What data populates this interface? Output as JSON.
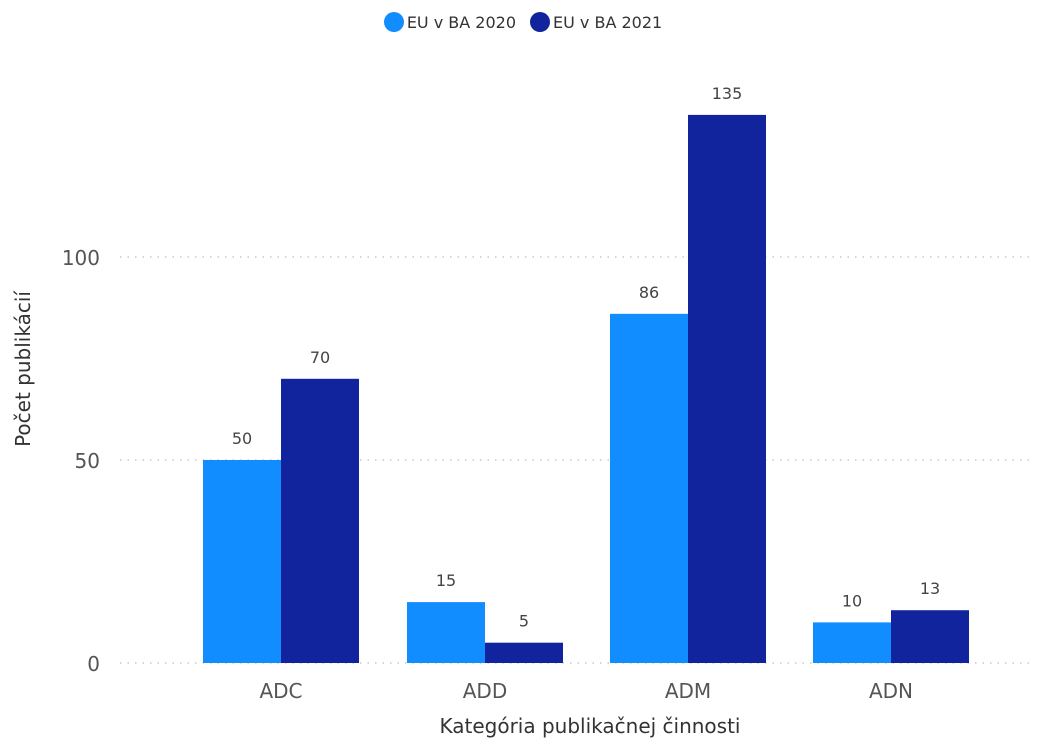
{
  "chart_data": {
    "type": "bar",
    "title": "",
    "xlabel": "Kategória publikačnej činnosti",
    "ylabel": "Počet publikácií",
    "categories": [
      "ADC",
      "ADD",
      "ADM",
      "ADN"
    ],
    "series": [
      {
        "name": "EU v BA 2020",
        "color": "#118DFF",
        "values": [
          50,
          15,
          86,
          10
        ]
      },
      {
        "name": "EU v BA 2021",
        "color": "#12239E",
        "values": [
          70,
          5,
          135,
          13
        ]
      }
    ],
    "ylim": [
      0,
      135
    ],
    "yticks": [
      0,
      50,
      100
    ],
    "grid": true,
    "legend_position": "top-center"
  }
}
